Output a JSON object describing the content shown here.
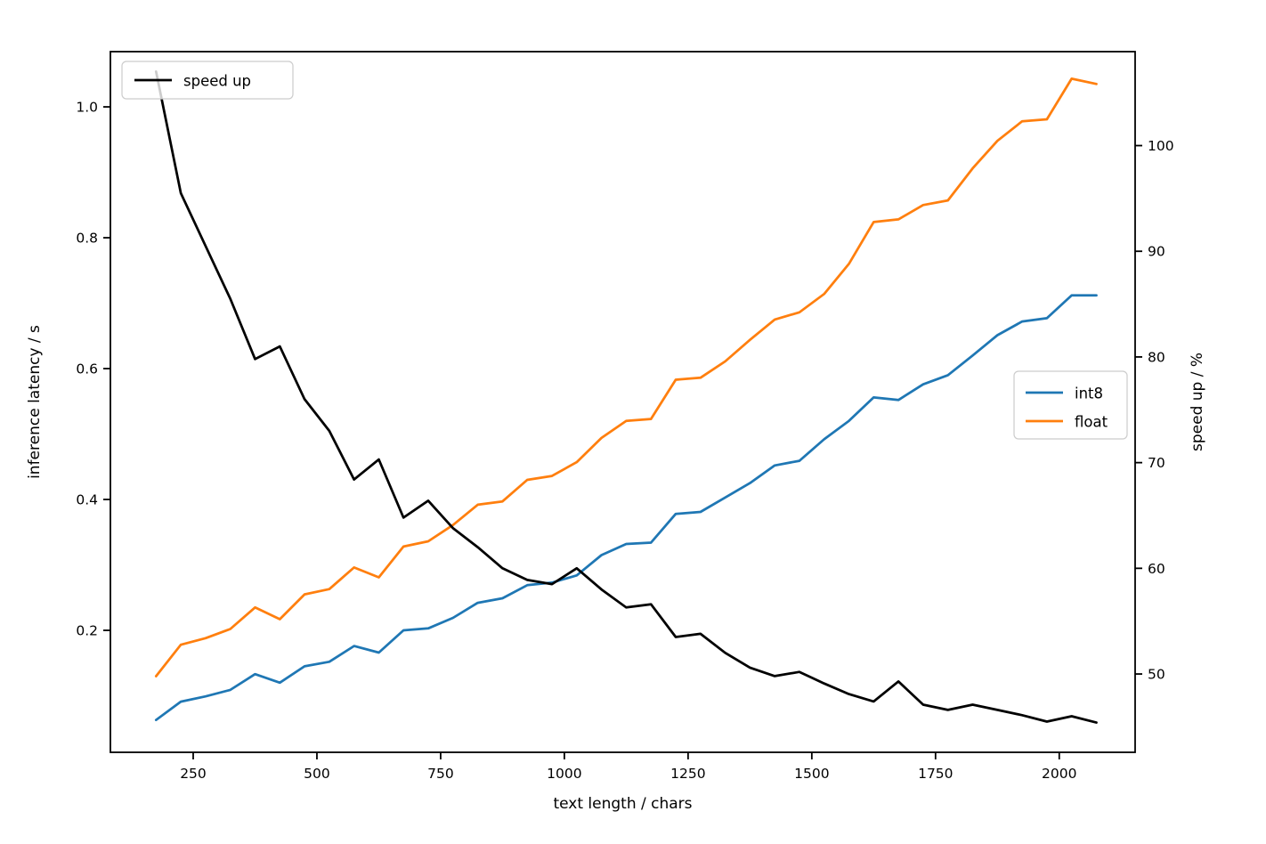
{
  "chart_data": {
    "type": "line",
    "title": "",
    "xlabel": "text length / chars",
    "ylabel_left": "inference latency / s",
    "ylabel_right": "speed up / %",
    "grid": false,
    "background_color": "#ffffff",
    "x": [
      175,
      225,
      275,
      325,
      375,
      425,
      475,
      525,
      575,
      625,
      675,
      725,
      775,
      825,
      875,
      925,
      975,
      1025,
      1075,
      1125,
      1175,
      1225,
      1275,
      1325,
      1375,
      1425,
      1475,
      1525,
      1575,
      1625,
      1675,
      1725,
      1775,
      1825,
      1875,
      1925,
      1975,
      2025,
      2075
    ],
    "series": [
      {
        "name": "int8",
        "axis": "left",
        "color": "#1f77b4",
        "values": [
          0.063,
          0.091,
          0.099,
          0.109,
          0.133,
          0.12,
          0.145,
          0.152,
          0.176,
          0.166,
          0.2,
          0.203,
          0.219,
          0.242,
          0.249,
          0.269,
          0.273,
          0.284,
          0.315,
          0.332,
          0.334,
          0.378,
          0.381,
          0.403,
          0.425,
          0.452,
          0.459,
          0.492,
          0.52,
          0.556,
          0.552,
          0.576,
          0.59,
          0.62,
          0.651,
          0.672,
          0.677,
          0.712,
          0.712
        ]
      },
      {
        "name": "float",
        "axis": "left",
        "color": "#ff7f0e",
        "values": [
          0.13,
          0.178,
          0.188,
          0.202,
          0.235,
          0.217,
          0.255,
          0.263,
          0.296,
          0.281,
          0.328,
          0.336,
          0.361,
          0.392,
          0.397,
          0.43,
          0.436,
          0.457,
          0.494,
          0.52,
          0.523,
          0.583,
          0.586,
          0.611,
          0.644,
          0.675,
          0.686,
          0.714,
          0.76,
          0.824,
          0.828,
          0.85,
          0.857,
          0.906,
          0.948,
          0.978,
          0.981,
          1.043,
          1.035
        ]
      },
      {
        "name": "speed up",
        "axis": "right",
        "color": "#000000",
        "values": [
          107.0,
          95.5,
          90.5,
          85.5,
          79.8,
          81.0,
          76.0,
          73.0,
          68.4,
          70.3,
          64.8,
          66.4,
          63.8,
          62.0,
          60.0,
          58.9,
          58.5,
          60.0,
          58.0,
          56.3,
          56.6,
          53.5,
          53.8,
          52.0,
          50.6,
          49.8,
          50.2,
          49.1,
          48.1,
          47.4,
          49.3,
          47.1,
          46.6,
          47.1,
          46.6,
          46.1,
          45.5,
          46.0,
          45.4
        ]
      }
    ],
    "axes": {
      "x": {
        "ticks": [
          250,
          500,
          750,
          1000,
          1250,
          1500,
          1750,
          2000
        ],
        "lim": [
          82.7,
          2153.3
        ]
      },
      "left": {
        "ticks": [
          0.2,
          0.4,
          0.6,
          0.8,
          1.0
        ],
        "lim": [
          0.0136,
          1.0844
        ]
      },
      "right": {
        "ticks": [
          50,
          60,
          70,
          80,
          90,
          100
        ],
        "lim": [
          42.59,
          108.89
        ]
      }
    },
    "legends": [
      {
        "position": "upper-left",
        "entries": [
          {
            "label": "speed up",
            "color": "#000000"
          }
        ]
      },
      {
        "position": "center-right",
        "entries": [
          {
            "label": "int8",
            "color": "#1f77b4"
          },
          {
            "label": "float",
            "color": "#ff7f0e"
          }
        ]
      }
    ]
  }
}
